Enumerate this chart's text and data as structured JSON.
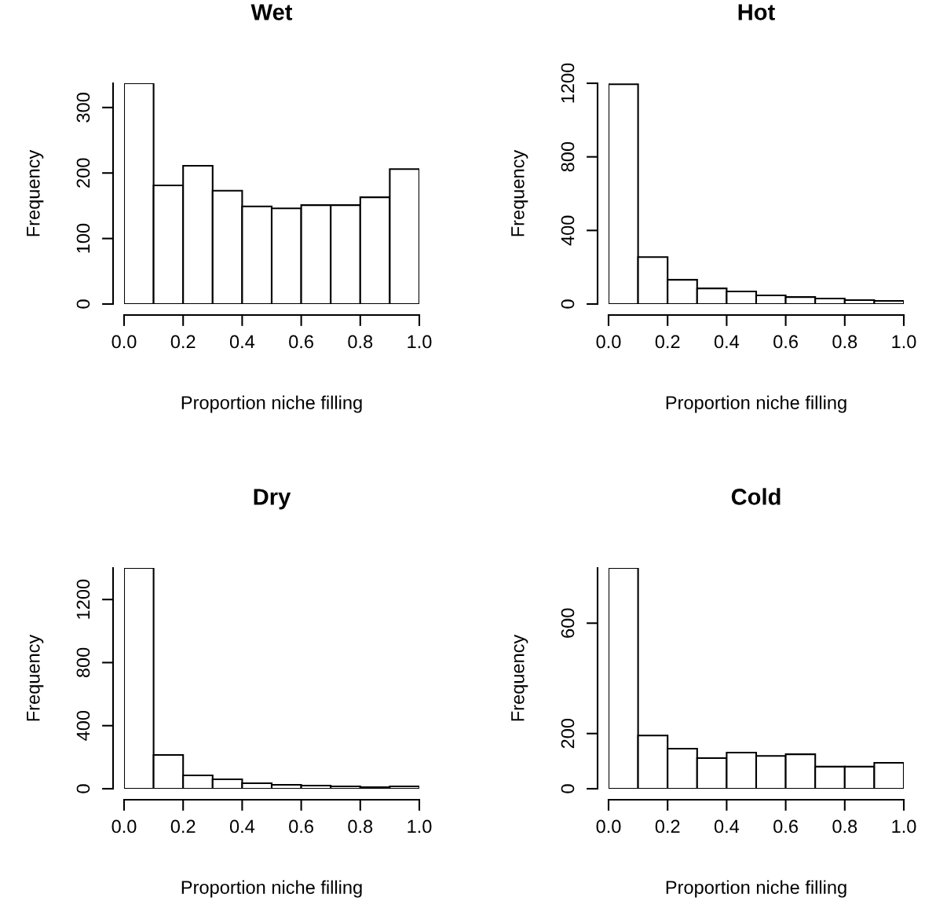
{
  "chart_data": [
    {
      "type": "histogram",
      "title": "Wet",
      "xlabel": "Proportion niche filling",
      "ylabel": "Frequency",
      "bins": [
        0,
        0.1,
        0.2,
        0.3,
        0.4,
        0.5,
        0.6,
        0.7,
        0.8,
        0.9,
        1.0
      ],
      "values": [
        337,
        181,
        211,
        173,
        149,
        146,
        151,
        151,
        163,
        206
      ],
      "color": "#ffffff",
      "xlim": [
        0,
        1
      ],
      "xticks": [
        {
          "value": 0,
          "label": "0.0"
        },
        {
          "value": 0.2,
          "label": "0.2"
        },
        {
          "value": 0.4,
          "label": "0.4"
        },
        {
          "value": 0.6,
          "label": "0.6"
        },
        {
          "value": 0.8,
          "label": "0.8"
        },
        {
          "value": 1,
          "label": "1.0"
        }
      ],
      "ylim": [
        0,
        337
      ],
      "yticks": [
        0,
        100,
        200,
        300
      ],
      "grid": false,
      "legend": false
    },
    {
      "type": "histogram",
      "title": "Hot",
      "xlabel": "Proportion niche filling",
      "ylabel": "Frequency",
      "bins": [
        0,
        0.1,
        0.2,
        0.3,
        0.4,
        0.5,
        0.6,
        0.7,
        0.8,
        0.9,
        1.0
      ],
      "values": [
        1195,
        255,
        132,
        85,
        68,
        47,
        38,
        30,
        21,
        17
      ],
      "color": "#ffffff",
      "xlim": [
        0,
        1
      ],
      "xticks": [
        {
          "value": 0,
          "label": "0.0"
        },
        {
          "value": 0.2,
          "label": "0.2"
        },
        {
          "value": 0.4,
          "label": "0.4"
        },
        {
          "value": 0.6,
          "label": "0.6"
        },
        {
          "value": 0.8,
          "label": "0.8"
        },
        {
          "value": 1,
          "label": "1.0"
        }
      ],
      "ylim": [
        0,
        1200
      ],
      "yticks": [
        0,
        400,
        800,
        1200
      ],
      "grid": false,
      "legend": false
    },
    {
      "type": "histogram",
      "title": "Dry",
      "xlabel": "Proportion niche filling",
      "ylabel": "Frequency",
      "bins": [
        0,
        0.1,
        0.2,
        0.3,
        0.4,
        0.5,
        0.6,
        0.7,
        0.8,
        0.9,
        1.0
      ],
      "values": [
        1400,
        214,
        85,
        60,
        35,
        25,
        20,
        15,
        10,
        15
      ],
      "color": "#ffffff",
      "xlim": [
        0,
        1
      ],
      "xticks": [
        {
          "value": 0,
          "label": "0.0"
        },
        {
          "value": 0.2,
          "label": "0.2"
        },
        {
          "value": 0.4,
          "label": "0.4"
        },
        {
          "value": 0.6,
          "label": "0.6"
        },
        {
          "value": 0.8,
          "label": "0.8"
        },
        {
          "value": 1,
          "label": "1.0"
        }
      ],
      "ylim": [
        0,
        1400
      ],
      "yticks": [
        0,
        400,
        800,
        1200
      ],
      "grid": false,
      "legend": false
    },
    {
      "type": "histogram",
      "title": "Cold",
      "xlabel": "Proportion niche filling",
      "ylabel": "Frequency",
      "bins": [
        0,
        0.1,
        0.2,
        0.3,
        0.4,
        0.5,
        0.6,
        0.7,
        0.8,
        0.9,
        1.0
      ],
      "values": [
        800,
        193,
        145,
        111,
        131,
        119,
        125,
        80,
        80,
        94
      ],
      "color": "#ffffff",
      "xlim": [
        0,
        1
      ],
      "xticks": [
        {
          "value": 0,
          "label": "0.0"
        },
        {
          "value": 0.2,
          "label": "0.2"
        },
        {
          "value": 0.4,
          "label": "0.4"
        },
        {
          "value": 0.6,
          "label": "0.6"
        },
        {
          "value": 0.8,
          "label": "0.8"
        },
        {
          "value": 1,
          "label": "1.0"
        }
      ],
      "ylim": [
        0,
        800
      ],
      "yticks": [
        0,
        200,
        600
      ],
      "grid": false,
      "legend": false
    }
  ]
}
